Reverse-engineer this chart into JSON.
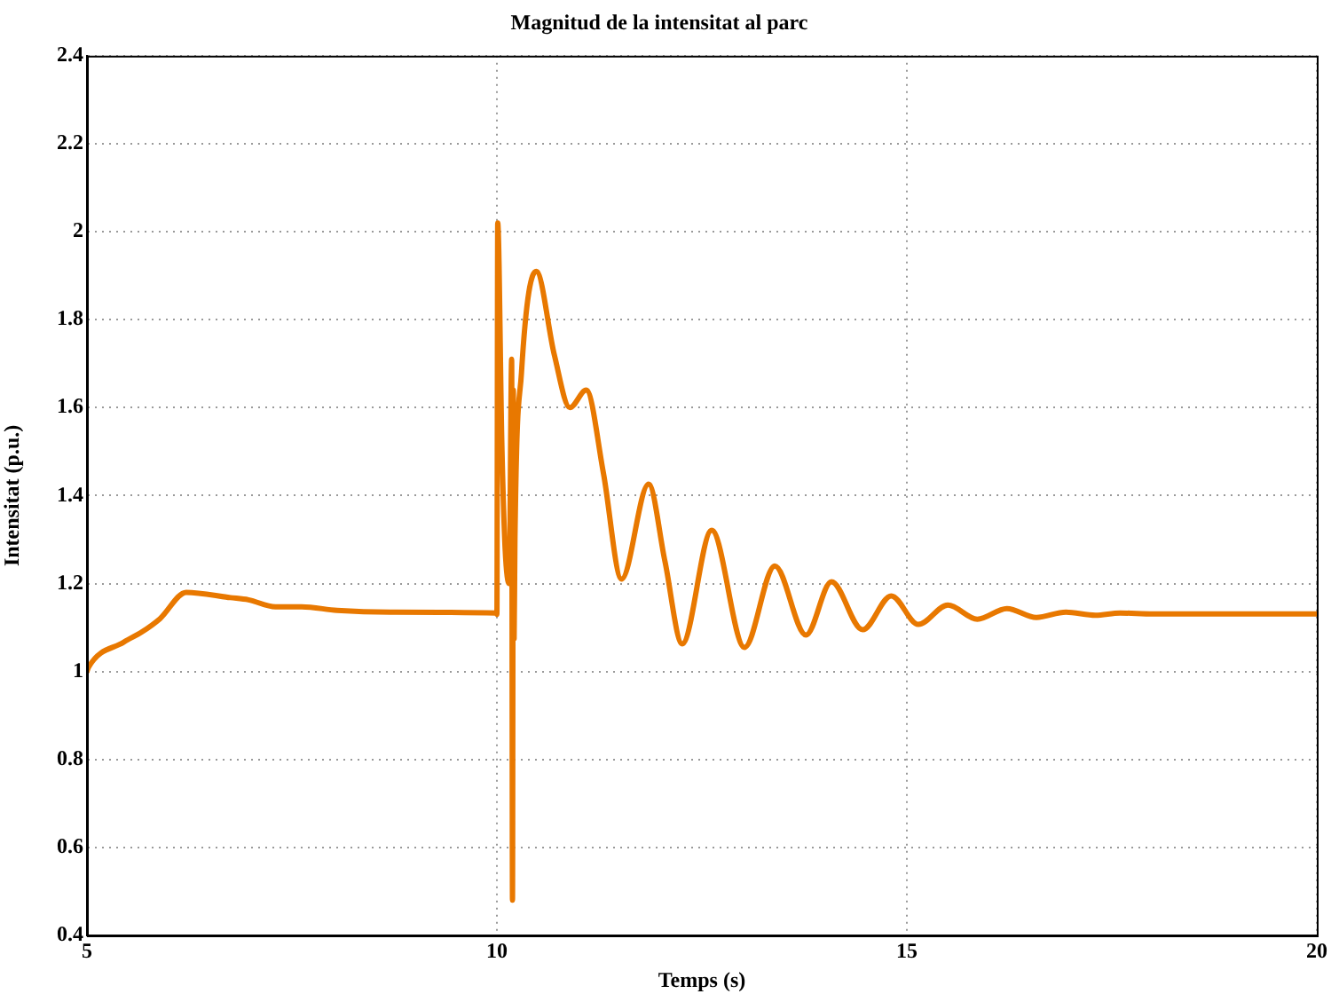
{
  "chart_data": {
    "type": "line",
    "title": "Magnitud de la intensitat al parc",
    "xlabel": "Temps (s)",
    "ylabel": "Intensitat (p.u.)",
    "xlim": [
      5,
      20
    ],
    "xticks": [
      5,
      10,
      15,
      20
    ],
    "ylim": [
      0.4,
      2.4
    ],
    "yticks": [
      0.4,
      0.6,
      0.8,
      1,
      1.2,
      1.4,
      1.6,
      1.8,
      2,
      2.2,
      2.4
    ],
    "grid": true,
    "marker": "none",
    "line_style": "solid",
    "series": [
      {
        "color": "#e87800",
        "x": [
          5,
          5.02,
          5.45,
          5.67,
          5.89,
          6.21,
          6.75,
          6.97,
          7.3,
          7.62,
          8.05,
          8.7,
          9.99,
          10.0,
          10.01,
          10.06,
          10.1,
          10.15,
          10.18,
          10.19,
          10.2,
          10.21,
          10.22,
          10.3,
          10.48,
          10.7,
          10.89,
          11.09,
          11.3,
          11.52,
          11.85,
          12.05,
          12.26,
          12.62,
          13.02,
          13.39,
          13.77,
          14.08,
          14.46,
          14.81,
          15.14,
          15.5,
          15.86,
          16.22,
          16.58,
          16.94,
          17.3,
          17.6,
          18,
          19,
          20
        ],
        "values": [
          1.0,
          1.01,
          1.067,
          1.09,
          1.12,
          1.18,
          1.168,
          1.163,
          1.147,
          1.147,
          1.139,
          1.135,
          1.133,
          1.13,
          2.02,
          1.52,
          1.28,
          1.2,
          1.71,
          0.48,
          1.64,
          1.075,
          1.3,
          1.68,
          1.91,
          1.72,
          1.6,
          1.64,
          1.45,
          1.21,
          1.426,
          1.25,
          1.063,
          1.321,
          1.055,
          1.24,
          1.083,
          1.204,
          1.095,
          1.172,
          1.107,
          1.151,
          1.119,
          1.143,
          1.123,
          1.135,
          1.128,
          1.133,
          1.131,
          1.131,
          1.131
        ]
      }
    ]
  }
}
